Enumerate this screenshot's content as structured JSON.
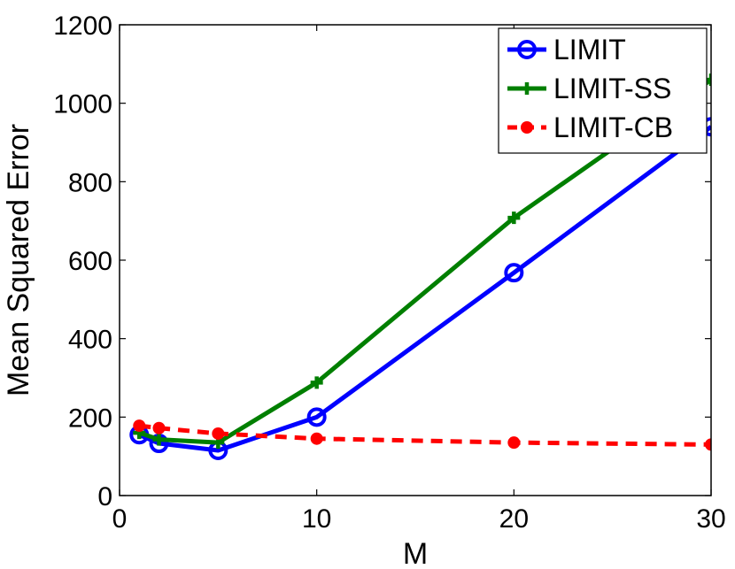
{
  "chart_data": {
    "type": "line",
    "title": "",
    "xlabel": "M",
    "ylabel": "Mean Squared Error",
    "xlim": [
      0,
      30
    ],
    "ylim": [
      0,
      1200
    ],
    "xticks": [
      0,
      10,
      20,
      30
    ],
    "yticks": [
      0,
      200,
      400,
      600,
      800,
      1000,
      1200
    ],
    "grid": false,
    "legend_position": "top-right",
    "series": [
      {
        "name": "LIMIT",
        "color": "#0000ff",
        "marker": "circle",
        "line_style": "solid",
        "x": [
          1,
          2,
          5,
          10,
          20,
          30
        ],
        "y": [
          155,
          133,
          115,
          200,
          568,
          940
        ]
      },
      {
        "name": "LIMIT-SS",
        "color": "#007f00",
        "marker": "plus",
        "line_style": "solid",
        "x": [
          1,
          2,
          5,
          10,
          20,
          30
        ],
        "y": [
          160,
          143,
          135,
          288,
          708,
          1060
        ]
      },
      {
        "name": "LIMIT-CB",
        "color": "#ff0000",
        "marker": "dot",
        "line_style": "dashed",
        "x": [
          1,
          2,
          5,
          10,
          20,
          30
        ],
        "y": [
          178,
          172,
          158,
          145,
          135,
          130
        ]
      }
    ]
  }
}
